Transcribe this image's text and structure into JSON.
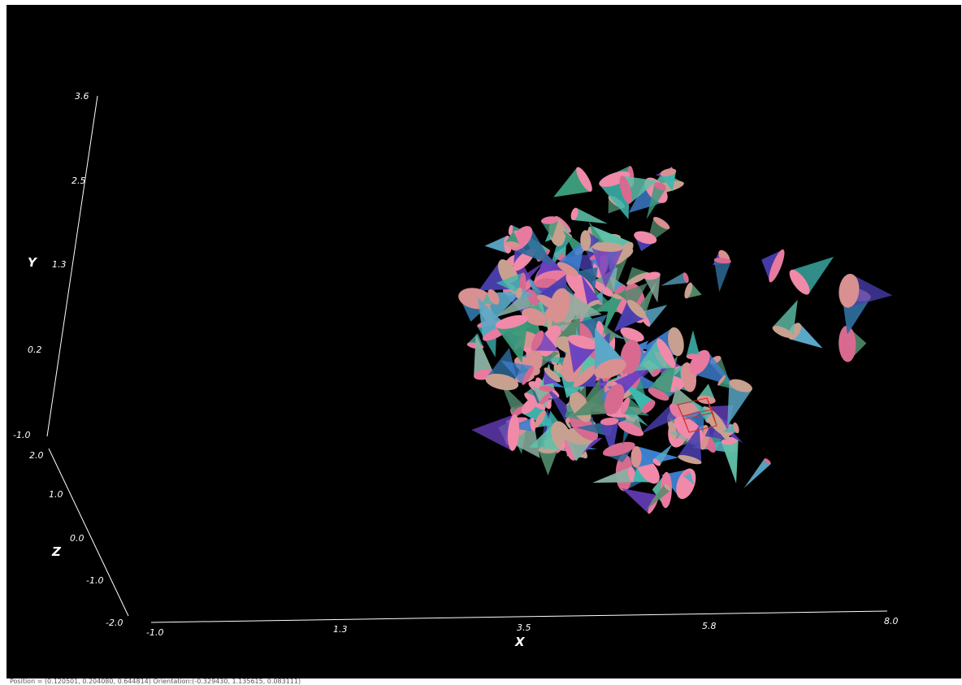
{
  "viewer": {
    "background": "#000000",
    "status_text": "Position = (0.120501, 0.204080, 0.644814) Orientation:(-0.329430, 1.135615, 0.083111)"
  },
  "axes": {
    "x": {
      "title": "X",
      "ticks": [
        "-1.0",
        "1.3",
        "3.5",
        "5.8",
        "8.0"
      ]
    },
    "y": {
      "title": "Y",
      "ticks": [
        "3.6",
        "2.5",
        "1.3",
        "0.2",
        "-1.0"
      ]
    },
    "z": {
      "title": "Z",
      "ticks": [
        "2.0",
        "1.0",
        "0.0",
        "-1.0",
        "-2.0"
      ]
    }
  },
  "glyph_colors": [
    "#3fb8b0",
    "#5aa8c8",
    "#3d7fd0",
    "#4a3fb0",
    "#6a3fc0",
    "#3a9a7a",
    "#5fc0a8",
    "#2d6b9a",
    "#8ab0a0",
    "#4f8a6a"
  ],
  "ellipse_colors": [
    "#e87aa0",
    "#d86a90",
    "#f08aa8",
    "#c8a090",
    "#d89090"
  ],
  "selection_box_color": "#d03020"
}
